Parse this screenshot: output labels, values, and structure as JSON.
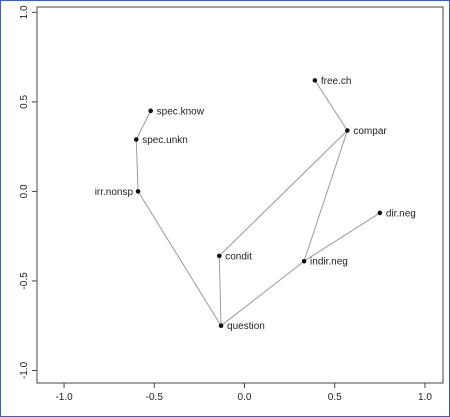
{
  "chart_data": {
    "type": "scatter",
    "title": "",
    "xlabel": "",
    "ylabel": "",
    "xlim": [
      -1.15,
      1.1
    ],
    "ylim": [
      -1.07,
      1.03
    ],
    "x_ticks": [
      -1.0,
      -0.5,
      0.0,
      0.5,
      1.0
    ],
    "x_tick_labels": [
      "-1.0",
      "-0.5",
      "0.0",
      "0.5",
      "1.0"
    ],
    "y_ticks": [
      -1.0,
      -0.5,
      0.0,
      0.5,
      1.0
    ],
    "y_tick_labels": [
      "-1.0",
      "-0.5",
      "0.0",
      "0.5",
      "1.0"
    ],
    "grid": false,
    "points": [
      {
        "label": "spec.know",
        "x": -0.52,
        "y": 0.45
      },
      {
        "label": "spec.unkn",
        "x": -0.6,
        "y": 0.29
      },
      {
        "label": "irr.nonsp",
        "x": -0.59,
        "y": 0.0
      },
      {
        "label": "question",
        "x": -0.13,
        "y": -0.75
      },
      {
        "label": "condit",
        "x": -0.14,
        "y": -0.36
      },
      {
        "label": "indir.neg",
        "x": 0.33,
        "y": -0.39
      },
      {
        "label": "compar",
        "x": 0.57,
        "y": 0.34
      },
      {
        "label": "free.ch",
        "x": 0.39,
        "y": 0.62
      },
      {
        "label": "dir.neg",
        "x": 0.75,
        "y": -0.12
      }
    ],
    "edges": [
      [
        "spec.know",
        "spec.unkn"
      ],
      [
        "spec.unkn",
        "irr.nonsp"
      ],
      [
        "irr.nonsp",
        "question"
      ],
      [
        "question",
        "condit"
      ],
      [
        "question",
        "indir.neg"
      ],
      [
        "condit",
        "compar"
      ],
      [
        "indir.neg",
        "compar"
      ],
      [
        "compar",
        "free.ch"
      ],
      [
        "indir.neg",
        "dir.neg"
      ]
    ]
  }
}
